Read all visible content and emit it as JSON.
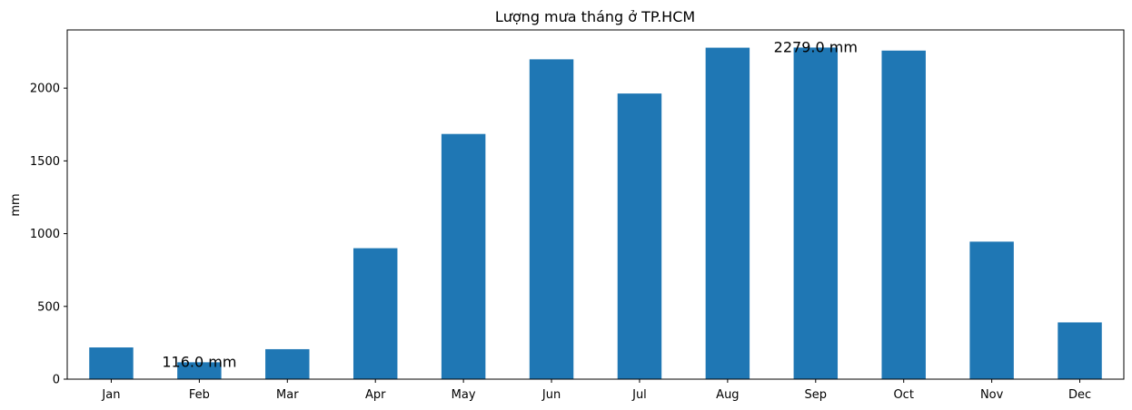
{
  "chart_data": {
    "type": "bar",
    "title": "Lượng mưa tháng ở TP.HCM",
    "xlabel": "",
    "ylabel": "mm",
    "categories": [
      "Jan",
      "Feb",
      "Mar",
      "Apr",
      "May",
      "Jun",
      "Jul",
      "Aug",
      "Sep",
      "Oct",
      "Nov",
      "Dec"
    ],
    "values": [
      218,
      116,
      206,
      900,
      1685,
      2198,
      1963,
      2278,
      2279,
      2258,
      945,
      390
    ],
    "ylim": [
      0,
      2400
    ],
    "yticks": [
      0,
      500,
      1000,
      1500,
      2000
    ],
    "ytick_labels": [
      "0",
      "500",
      "1000",
      "1500",
      "2000"
    ],
    "bar_color": "#1f77b4",
    "grid": false,
    "legend": "none",
    "annotations": [
      {
        "category": "Feb",
        "value": 116,
        "text": "116.0 mm"
      },
      {
        "category": "Sep",
        "value": 2279,
        "text": "2279.0 mm"
      }
    ]
  }
}
